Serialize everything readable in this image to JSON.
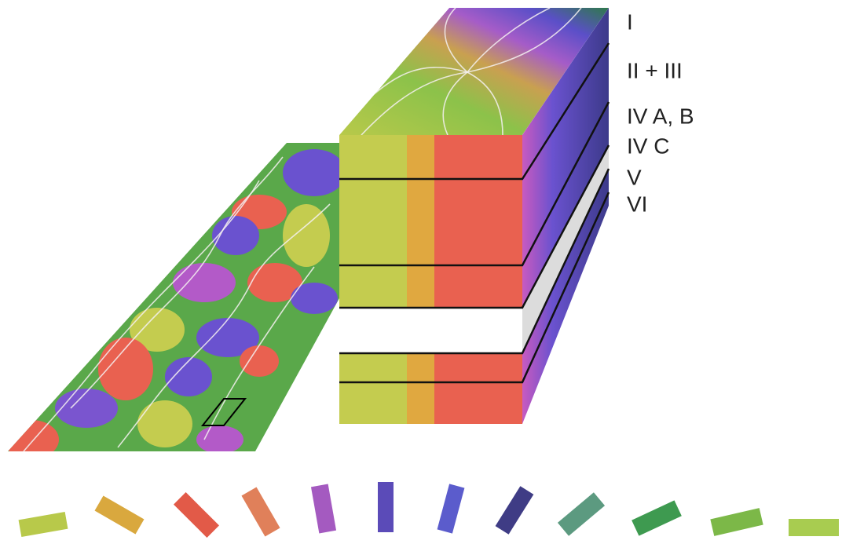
{
  "layers": {
    "labels": [
      "I",
      "II + III",
      "IV A, B",
      "IV C",
      "V",
      "VI"
    ]
  }
}
